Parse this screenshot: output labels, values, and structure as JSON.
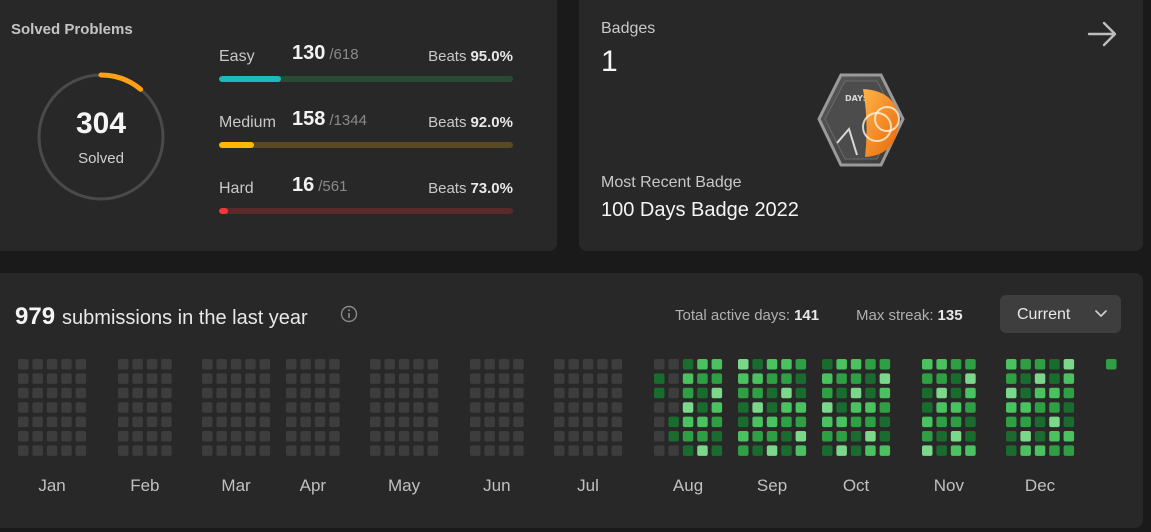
{
  "solved": {
    "title": "Solved Problems",
    "count": "304",
    "label": "Solved",
    "difficulties": [
      {
        "name": "Easy",
        "solved": "130",
        "total": "/618",
        "beats_label": "Beats",
        "beats": "95.0%",
        "fraction": 0.21,
        "color": "#1cbaba",
        "track": "#2a4a35"
      },
      {
        "name": "Medium",
        "solved": "158",
        "total": "/1344",
        "beats_label": "Beats",
        "beats": "92.0%",
        "fraction": 0.118,
        "color": "#ffb800",
        "track": "#5a4a22"
      },
      {
        "name": "Hard",
        "solved": "16",
        "total": "/561",
        "beats_label": "Beats",
        "beats": "73.0%",
        "fraction": 0.029,
        "color": "#f63737",
        "track": "#5a2a2a"
      }
    ],
    "ring_progress": 0.11,
    "ring_color": "#ffa116"
  },
  "badges": {
    "title": "Badges",
    "count": "1",
    "badge_text": "DAYS",
    "recent_label": "Most Recent Badge",
    "recent_name": "100 Days Badge 2022",
    "arrow_icon": "arrow-right-icon"
  },
  "submissions": {
    "count": "979",
    "text": "submissions in the last year",
    "total_active_label": "Total active days:",
    "total_active": "141",
    "max_streak_label": "Max streak:",
    "max_streak": "135",
    "dropdown": "Current",
    "months": [
      "Jan",
      "Feb",
      "Mar",
      "Apr",
      "May",
      "Jun",
      "Jul",
      "Aug",
      "Sep",
      "Oct",
      "Nov",
      "Dec"
    ],
    "colors": {
      "empty": "#3d3d3d",
      "low": "#196c2e",
      "mid": "#2ea043",
      "high": "#4ac260",
      "max": "#7bd88a"
    }
  }
}
